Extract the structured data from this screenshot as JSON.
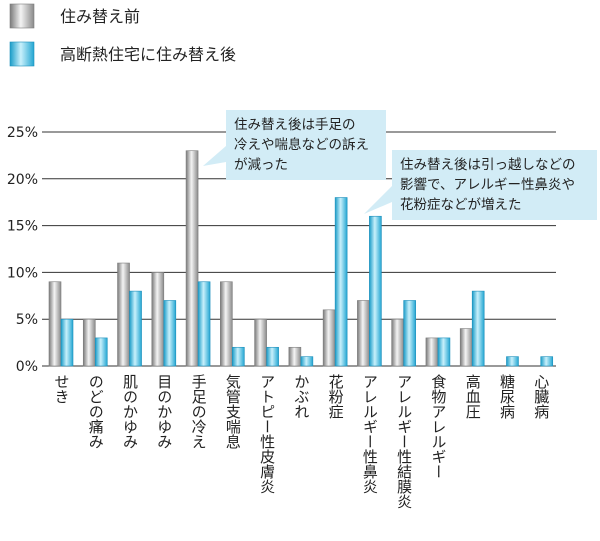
{
  "chart_data": {
    "type": "bar",
    "title": "",
    "xlabel": "",
    "ylabel": "",
    "ylim": [
      0,
      25
    ],
    "yticks": [
      0,
      5,
      10,
      15,
      20,
      25
    ],
    "ytick_labels": [
      "0%",
      "5%",
      "10%",
      "15%",
      "20%",
      "25%"
    ],
    "grid": true,
    "legend_position": "top-left",
    "categories": [
      "せき",
      "のどの痛み",
      "肌のかゆみ",
      "目のかゆみ",
      "手足の冷え",
      "気管支喘息",
      "アトピー性皮膚炎",
      "かぶれ",
      "花粉症",
      "アレルギー性鼻炎",
      "アレルギー性結膜炎",
      "食物アレルギー",
      "高血圧",
      "糖尿病",
      "心臓病"
    ],
    "series": [
      {
        "name": "住み替え前",
        "color": "#a6a6a6",
        "values": [
          9,
          5,
          11,
          10,
          23,
          9,
          5,
          2,
          6,
          7,
          5,
          3,
          4,
          0,
          0
        ]
      },
      {
        "name": "高断熱住宅に住み替え後",
        "color": "#38b8dc",
        "values": [
          5,
          3,
          8,
          7,
          9,
          2,
          2,
          1,
          18,
          16,
          7,
          3,
          8,
          1,
          1
        ]
      }
    ],
    "annotations": [
      {
        "lines": [
          "住み替え後は手足の",
          "冷えや喘息などの訴え",
          "が減った"
        ]
      },
      {
        "lines": [
          "住み替え後は引っ越しなどの",
          "影響で、アレルギー性鼻炎や",
          "花粉症などが増えた"
        ]
      }
    ]
  }
}
